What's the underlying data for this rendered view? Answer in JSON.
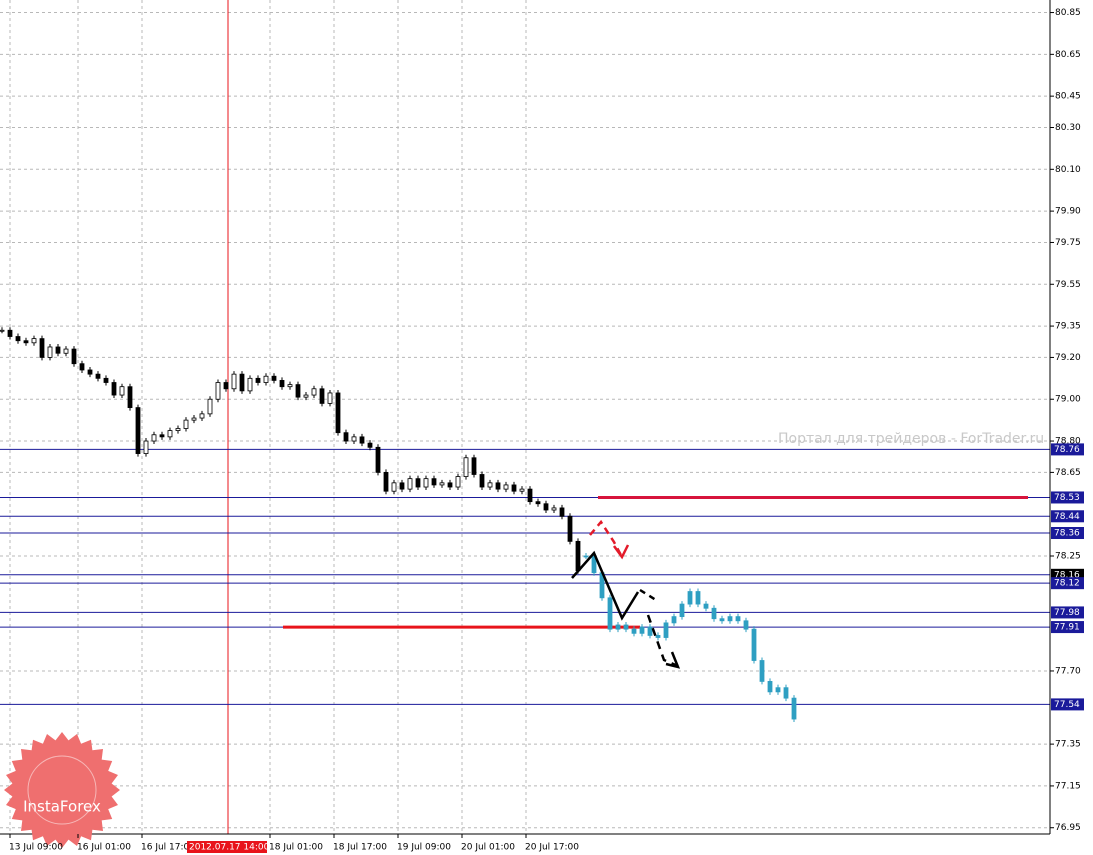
{
  "chart_data": {
    "type": "candlestick",
    "xlim": [
      -2.5,
      260
    ],
    "ylim": [
      76.92,
      80.91
    ],
    "yticks": [
      {
        "value": 80.85,
        "label": "80.85"
      },
      {
        "value": 80.65,
        "label": "80.65"
      },
      {
        "value": 80.45,
        "label": "80.45"
      },
      {
        "value": 80.3,
        "label": "80.30"
      },
      {
        "value": 80.1,
        "label": "80.10"
      },
      {
        "value": 79.9,
        "label": "79.90"
      },
      {
        "value": 79.75,
        "label": "79.75"
      },
      {
        "value": 79.55,
        "label": "79.55"
      },
      {
        "value": 79.35,
        "label": "79.35"
      },
      {
        "value": 79.2,
        "label": "79.20"
      },
      {
        "value": 79.0,
        "label": "79.00"
      },
      {
        "value": 78.8,
        "label": "78.80"
      },
      {
        "value": 78.65,
        "label": "78.65"
      },
      {
        "value": 78.25,
        "label": "78.25"
      },
      {
        "value": 77.7,
        "label": "77.70"
      },
      {
        "value": 77.35,
        "label": "77.35"
      },
      {
        "value": 77.15,
        "label": "77.15"
      },
      {
        "value": 76.95,
        "label": "76.95"
      }
    ],
    "xticks": [
      {
        "value": 0,
        "label": "13 Jul 09:00"
      },
      {
        "value": 17,
        "label": "16 Jul 01:00"
      },
      {
        "value": 33,
        "label": "16 Jul 17:00"
      },
      {
        "value": 65,
        "label": "18 Jul 01:00"
      },
      {
        "value": 81,
        "label": "18 Jul 17:00"
      },
      {
        "value": 97,
        "label": "19 Jul 09:00"
      },
      {
        "value": 113,
        "label": "20 Jul 01:00"
      },
      {
        "value": 129,
        "label": "20 Jul 17:00"
      }
    ],
    "marker": {
      "value": 54.5,
      "label": "2012.07.17 14:00",
      "color": "#e8141b"
    },
    "grid": true,
    "series": [
      {
        "color": "#000000",
        "x": [
          -2,
          0,
          2,
          4,
          6,
          8,
          10,
          12,
          14,
          16,
          18,
          20,
          22,
          24,
          26,
          28,
          30,
          32,
          34,
          36,
          38,
          40,
          42,
          44,
          46,
          48,
          50,
          52,
          54,
          56,
          58,
          60,
          62,
          64,
          66,
          68,
          70,
          72,
          74,
          76,
          78,
          80,
          82,
          84,
          86,
          88,
          90,
          92,
          94,
          96,
          98,
          100,
          102,
          104,
          106,
          108,
          110,
          112,
          114,
          116,
          118,
          120,
          122,
          124,
          126,
          128,
          130,
          132,
          134,
          136,
          138,
          140,
          142
        ],
        "values": [
          79.33,
          79.3,
          79.28,
          79.27,
          79.29,
          79.2,
          79.25,
          79.22,
          79.24,
          79.17,
          79.14,
          79.12,
          79.1,
          79.08,
          79.02,
          79.06,
          78.96,
          78.74,
          78.8,
          78.83,
          78.82,
          78.85,
          78.86,
          78.9,
          78.91,
          78.93,
          79.0,
          79.08,
          79.05,
          79.12,
          79.04,
          79.1,
          79.08,
          79.11,
          79.09,
          79.06,
          79.07,
          79.01,
          79.02,
          79.05,
          78.98,
          79.03,
          78.84,
          78.8,
          78.82,
          78.79,
          78.77,
          78.65,
          78.56,
          78.6,
          78.57,
          78.62,
          78.58,
          78.62,
          78.59,
          78.6,
          78.58,
          78.63,
          78.72,
          78.64,
          78.58,
          78.6,
          78.57,
          78.59,
          78.56,
          78.57,
          78.51,
          78.5,
          78.47,
          78.48,
          78.44,
          78.32,
          78.18
        ]
      },
      {
        "color": "#2e9fc2",
        "x": [
          144,
          146,
          148,
          150,
          152,
          154,
          156,
          158,
          160,
          162,
          164,
          166,
          168,
          170,
          172,
          174,
          176,
          178,
          180,
          182,
          184,
          186,
          188,
          190,
          192,
          194,
          196
        ],
        "values": [
          78.25,
          78.17,
          78.05,
          77.9,
          77.92,
          77.9,
          77.88,
          77.91,
          77.87,
          77.86,
          77.93,
          77.96,
          78.02,
          78.08,
          78.02,
          78.0,
          77.95,
          77.94,
          77.96,
          77.94,
          77.9,
          77.75,
          77.65,
          77.6,
          77.62,
          77.57,
          77.47
        ]
      }
    ],
    "levels": [
      78.76,
      78.53,
      78.44,
      78.36,
      78.16,
      78.12,
      77.98,
      77.91,
      77.54
    ],
    "level_color": "#1a1a9a",
    "current": 78.16,
    "segments": [
      {
        "value": 78.53,
        "x": [
          147,
          254.5
        ],
        "color": "#d7143c"
      },
      {
        "value": 77.91,
        "x": [
          68.25,
          157.5
        ],
        "color": "#e8141b"
      }
    ],
    "watermark": "Портал для трейдеров - ForTrader.ru",
    "logo": "InstaForex"
  }
}
